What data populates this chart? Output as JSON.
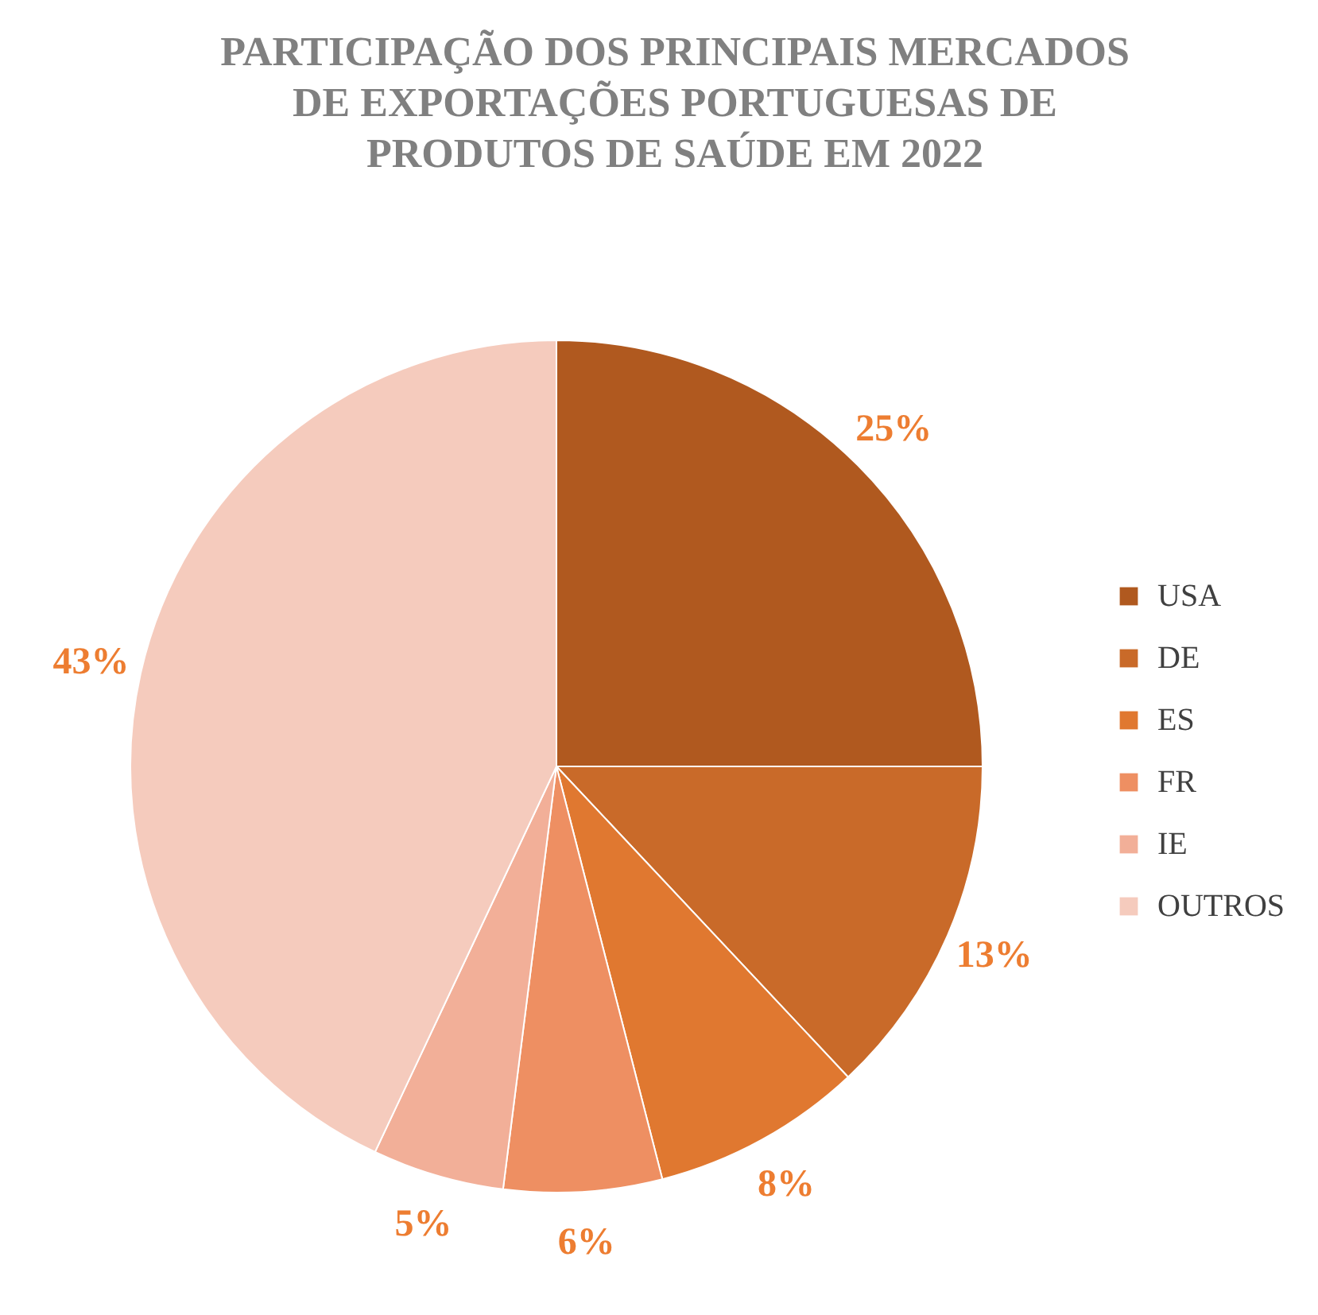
{
  "chart_data": {
    "type": "pie",
    "title": "PARTICIPAÇÃO DOS PRINCIPAIS MERCADOS\nDE EXPORTAÇÕES PORTUGUESAS DE\nPRODUTOS DE SAÚDE EM 2022",
    "categories": [
      "USA",
      "DE",
      "ES",
      "FR",
      "IE",
      "OUTROS"
    ],
    "values": [
      25,
      13,
      8,
      6,
      5,
      43
    ],
    "colors": [
      "#b0591f",
      "#c96a29",
      "#e07830",
      "#ee8f62",
      "#f2af98",
      "#f5cbbd"
    ],
    "value_labels": [
      "25%",
      "13%",
      "8%",
      "6%",
      "5%",
      "43%"
    ],
    "legend": "right"
  }
}
